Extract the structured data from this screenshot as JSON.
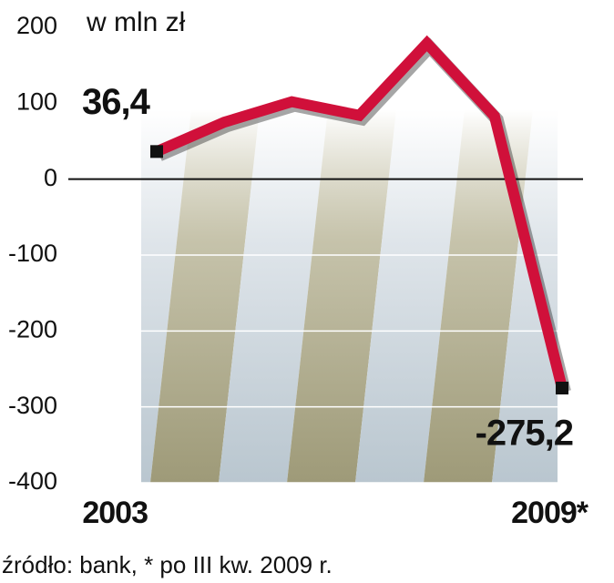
{
  "chart_data": {
    "type": "line",
    "unit_label": "w mln zł",
    "categories": [
      "2003",
      null,
      null,
      null,
      null,
      null,
      "2009*"
    ],
    "values": [
      36.4,
      75,
      102,
      84,
      179,
      83,
      -275.2
    ],
    "value_labels": [
      "36,4",
      null,
      null,
      null,
      null,
      null,
      "-275,2"
    ],
    "color": "#d0103a",
    "ylim": [
      -400,
      200
    ],
    "yticks": [
      200,
      100,
      0,
      -100,
      -200,
      -300,
      -400
    ],
    "grid": true,
    "source": "źródło: bank, * po III kw. 2009 r."
  }
}
